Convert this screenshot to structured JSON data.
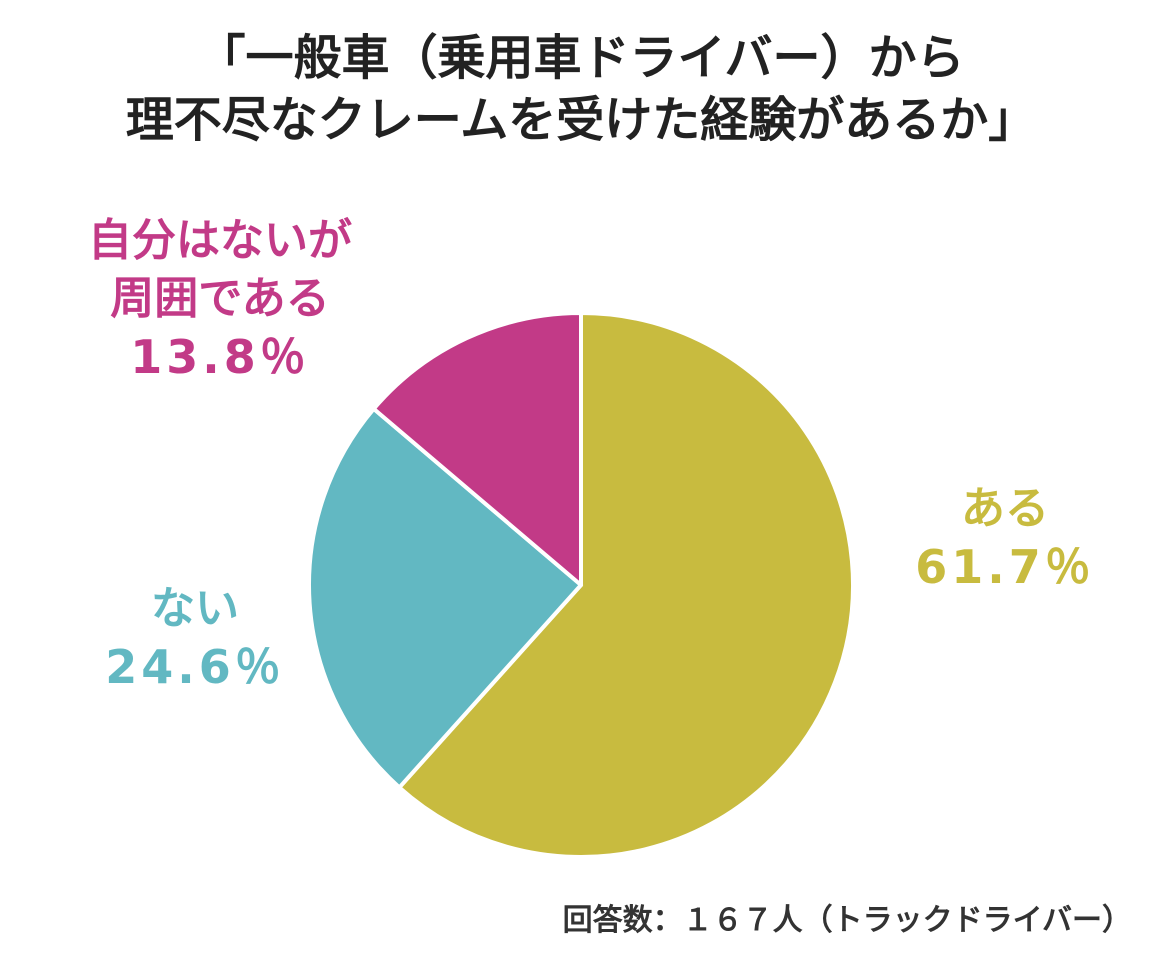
{
  "chart_data": {
    "type": "pie",
    "title_lines": [
      "「一般車（乗用車ドライバー）から",
      "理不尽なクレームを受けた経験があるか」"
    ],
    "slices": [
      {
        "label_lines": [
          "ある"
        ],
        "value": 61.7,
        "value_text": "61.7％",
        "color": "#c8bb3f"
      },
      {
        "label_lines": [
          "ない"
        ],
        "value": 24.6,
        "value_text": "24.6％",
        "color": "#62b8c2"
      },
      {
        "label_lines": [
          "自分はないが",
          "周囲である"
        ],
        "value": 13.8,
        "value_text": "13.8％",
        "color": "#c23a87"
      }
    ],
    "start_angle": "12 o'clock",
    "direction": "clockwise",
    "note": "回答数：１６７人（トラックドライバー）"
  }
}
